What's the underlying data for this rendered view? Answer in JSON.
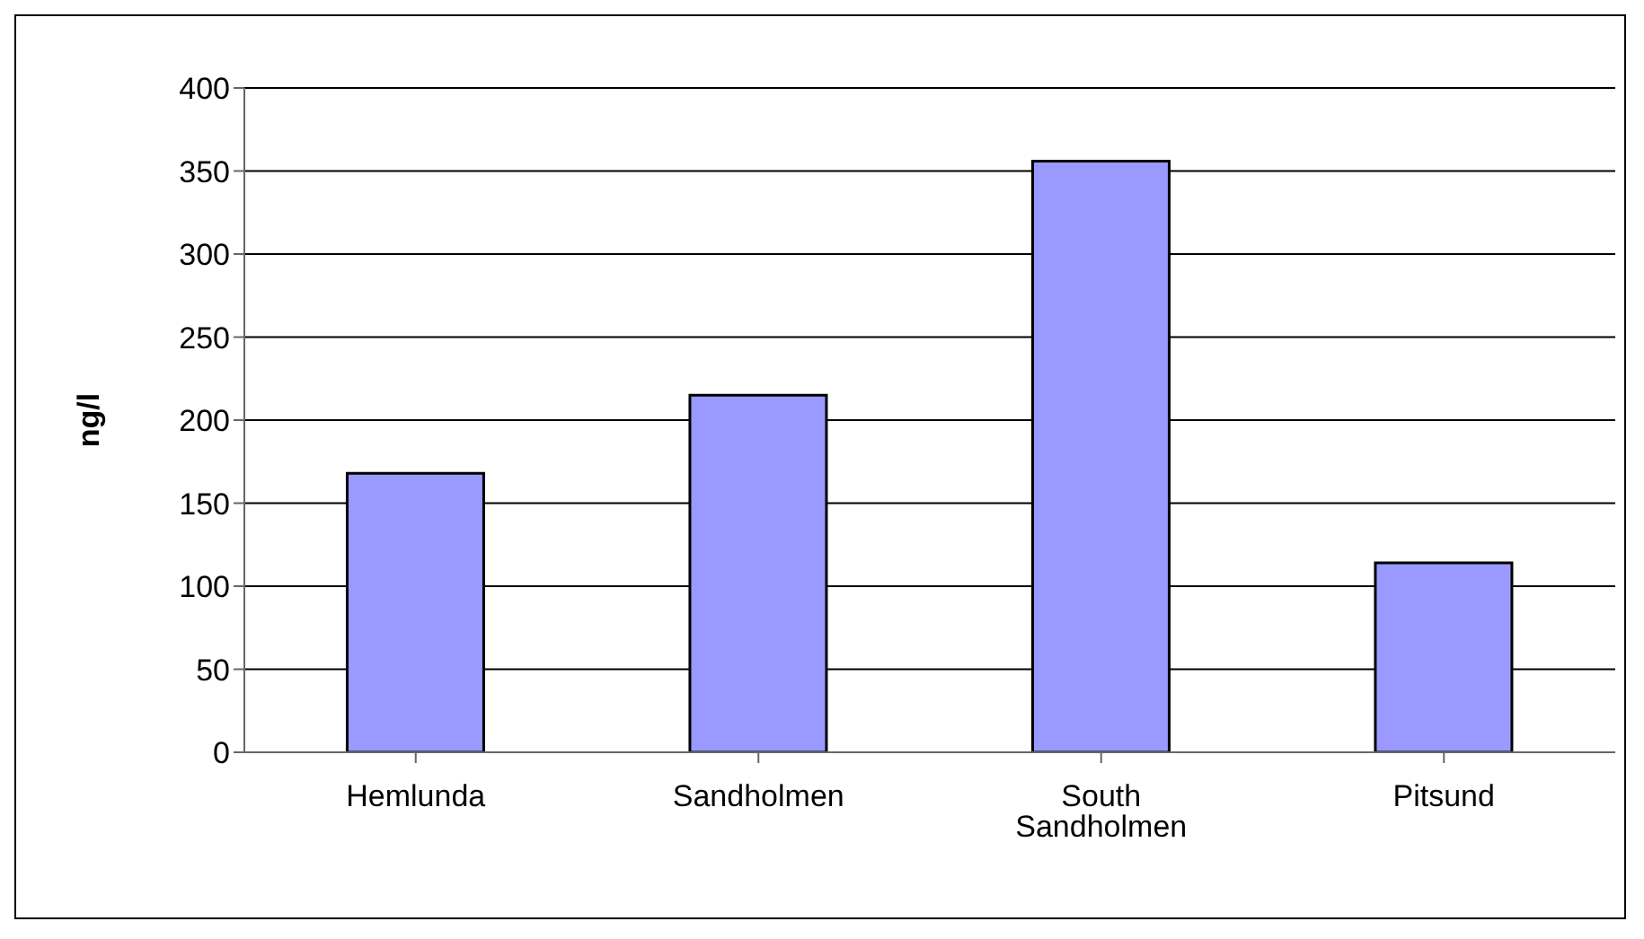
{
  "chart_data": {
    "type": "bar",
    "ylabel": "ng/l",
    "categories": [
      "Hemlunda",
      "Sandholmen",
      "South Sandholmen",
      "Pitsund"
    ],
    "values": [
      168,
      215,
      356,
      114
    ],
    "color": "#9999ff",
    "ylim": [
      0,
      400
    ],
    "yticks": [
      0,
      50,
      100,
      150,
      200,
      250,
      300,
      350,
      400
    ],
    "grid": "y",
    "legend": false
  }
}
